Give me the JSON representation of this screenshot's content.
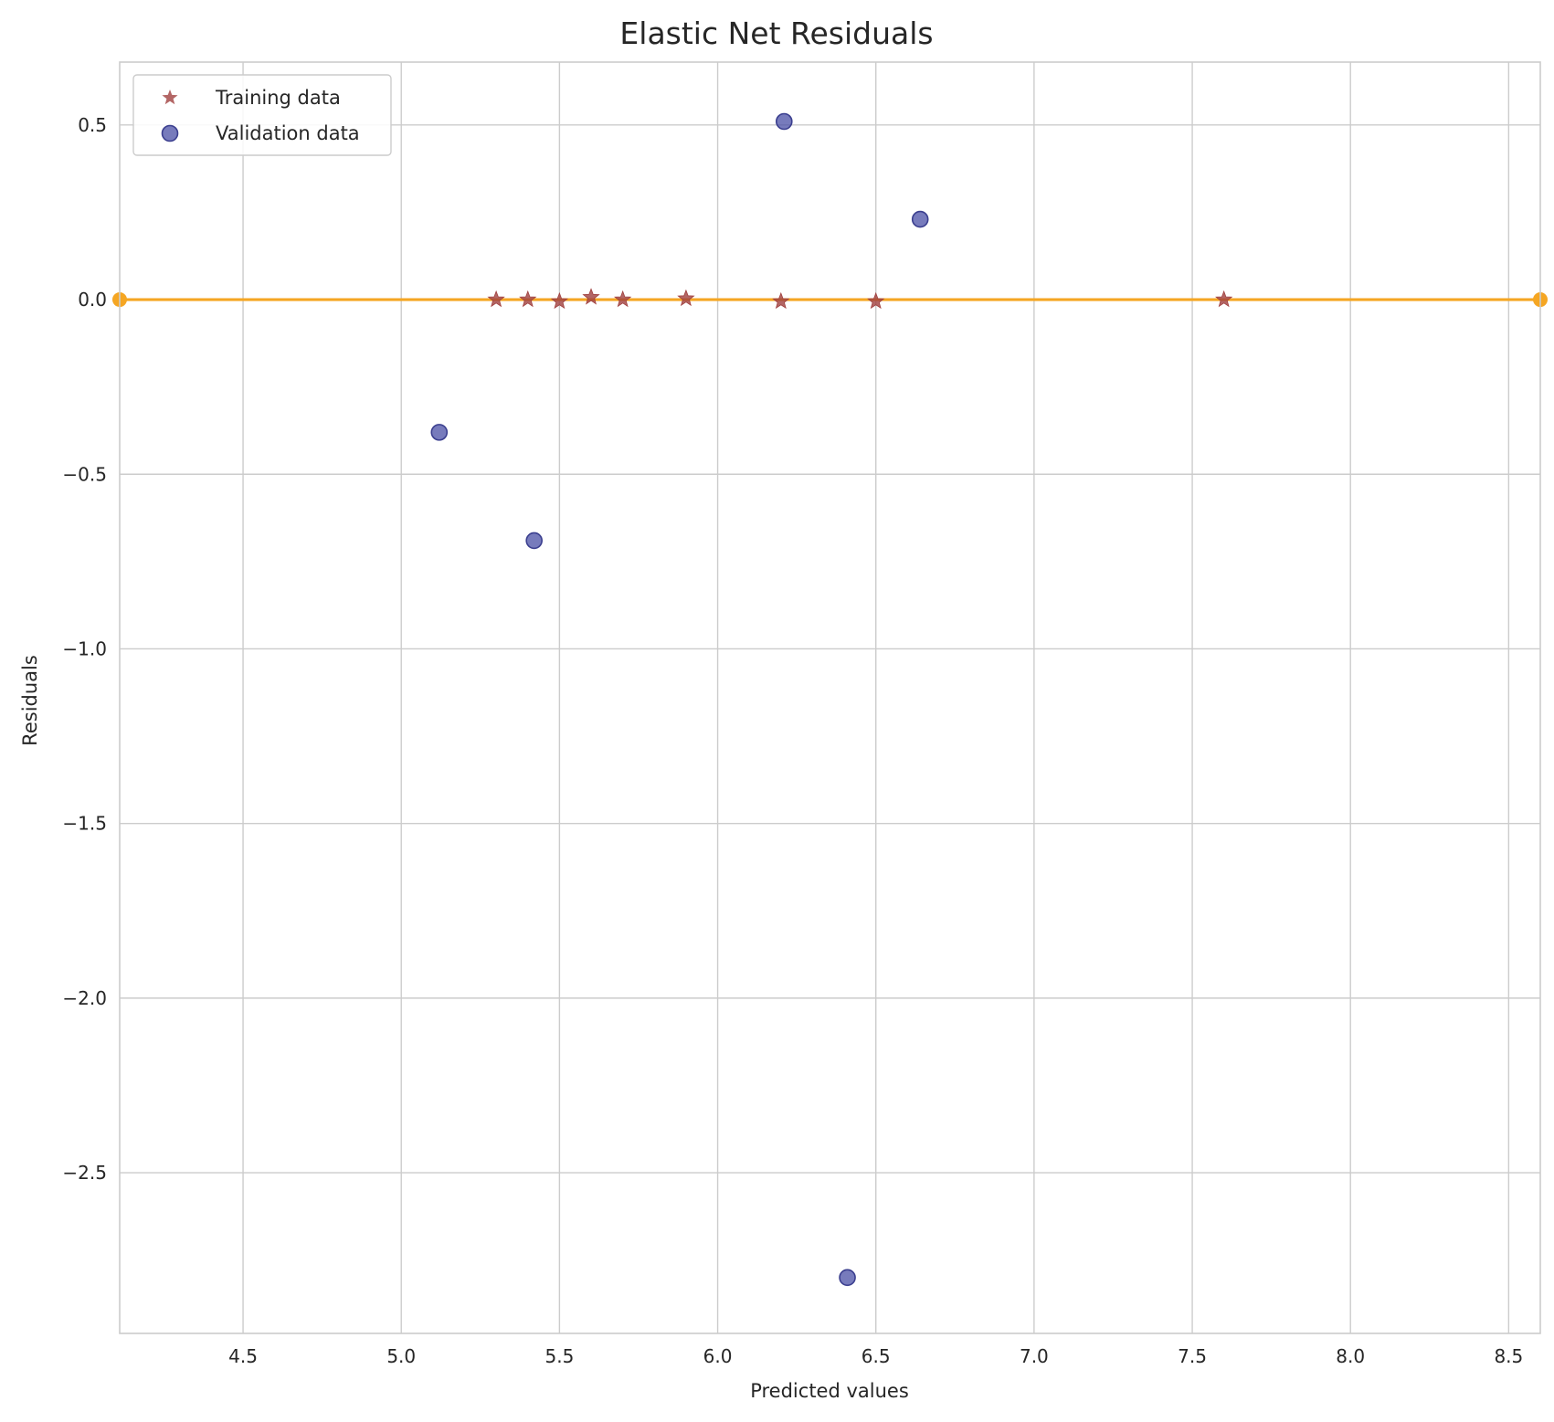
{
  "chart_data": {
    "type": "scatter",
    "title": "Elastic Net Residuals",
    "xlabel": "Predicted values",
    "ylabel": "Residuals",
    "xlim": [
      4.11,
      8.6
    ],
    "ylim": [
      -2.96,
      0.68
    ],
    "xticks": [
      4.5,
      5.0,
      5.5,
      6.0,
      6.5,
      7.0,
      7.5,
      8.0,
      8.5
    ],
    "xtick_labels": [
      "4.5",
      "5.0",
      "5.5",
      "6.0",
      "6.5",
      "7.0",
      "7.5",
      "8.0",
      "8.5"
    ],
    "yticks": [
      0.5,
      0.0,
      -0.5,
      -1.0,
      -1.5,
      -2.0,
      -2.5
    ],
    "ytick_labels": [
      "0.5",
      "0.0",
      "−0.5",
      "−1.0",
      "−1.5",
      "−2.0",
      "−2.5"
    ],
    "grid": true,
    "legend_position": "top-left",
    "series": [
      {
        "name": "Training data",
        "marker": "star",
        "color": "#a0403f",
        "points": [
          {
            "x": 5.3,
            "y": 0.0
          },
          {
            "x": 5.4,
            "y": 0.0
          },
          {
            "x": 5.5,
            "y": -0.005
          },
          {
            "x": 5.6,
            "y": 0.007
          },
          {
            "x": 5.7,
            "y": 0.0
          },
          {
            "x": 5.9,
            "y": 0.003
          },
          {
            "x": 6.2,
            "y": -0.005
          },
          {
            "x": 6.5,
            "y": -0.005
          },
          {
            "x": 7.6,
            "y": 0.0
          }
        ]
      },
      {
        "name": "Validation data",
        "marker": "circle",
        "color": "#4a4fa6",
        "points": [
          {
            "x": 5.12,
            "y": -0.38
          },
          {
            "x": 5.42,
            "y": -0.69
          },
          {
            "x": 6.21,
            "y": 0.51
          },
          {
            "x": 6.41,
            "y": -2.8
          },
          {
            "x": 6.64,
            "y": 0.23
          }
        ]
      }
    ],
    "reference_line": {
      "y": 0.0,
      "x_from": 4.11,
      "x_to": 8.6,
      "color": "#f5a623"
    }
  }
}
